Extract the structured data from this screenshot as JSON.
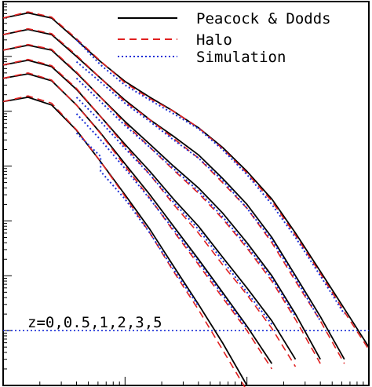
{
  "chart_data": {
    "type": "line",
    "title": "",
    "xlabel": "",
    "ylabel": "",
    "x_scale": "log",
    "y_scale": "log",
    "xlim": [
      0.01,
      10
    ],
    "ylim": [
      0.0001,
      1000
    ],
    "annotation": "z=0,0.5,1,2,3,5",
    "legend": {
      "placement": "top-right",
      "entries": [
        {
          "label": "Peacock & Dodds",
          "color": "#000000",
          "dash": "solid"
        },
        {
          "label": "Halo",
          "color": "#e02020",
          "dash": "dashed"
        },
        {
          "label": "Simulation",
          "color": "#1a2ed6",
          "dash": "dotted"
        }
      ]
    },
    "series": [
      {
        "redshift": "0",
        "pd": [
          [
            0.01,
            500
          ],
          [
            0.016,
            620
          ],
          [
            0.025,
            500
          ],
          [
            0.04,
            200
          ],
          [
            0.063,
            80
          ],
          [
            0.1,
            35
          ],
          [
            0.16,
            18
          ],
          [
            0.25,
            10
          ],
          [
            0.4,
            5
          ],
          [
            0.63,
            2.2
          ],
          [
            1,
            0.8
          ],
          [
            1.6,
            0.25
          ],
          [
            2.5,
            0.06
          ],
          [
            4,
            0.012
          ],
          [
            6.3,
            0.0025
          ],
          [
            10,
            0.0005
          ]
        ],
        "halo": [
          [
            0.01,
            500
          ],
          [
            0.016,
            650
          ],
          [
            0.025,
            520
          ],
          [
            0.04,
            210
          ],
          [
            0.063,
            82
          ],
          [
            0.1,
            33
          ],
          [
            0.16,
            17
          ],
          [
            0.25,
            10
          ],
          [
            0.4,
            5
          ],
          [
            0.63,
            2.1
          ],
          [
            1,
            0.75
          ],
          [
            1.6,
            0.23
          ],
          [
            2.5,
            0.055
          ],
          [
            4,
            0.011
          ],
          [
            6.3,
            0.0022
          ],
          [
            10,
            0.00045
          ]
        ],
        "sim": [
          [
            0.04,
            200
          ],
          [
            0.063,
            70
          ],
          [
            0.1,
            30
          ],
          [
            0.16,
            16
          ],
          [
            0.25,
            9
          ],
          [
            0.4,
            4.8
          ],
          [
            0.63,
            2
          ],
          [
            1,
            0.7
          ],
          [
            1.6,
            0.2
          ],
          [
            2.5,
            0.05
          ],
          [
            4,
            0.01
          ],
          [
            6.3,
            0.002
          ]
        ]
      },
      {
        "redshift": "0.5",
        "pd": [
          [
            0.01,
            250
          ],
          [
            0.016,
            310
          ],
          [
            0.025,
            250
          ],
          [
            0.04,
            100
          ],
          [
            0.063,
            40
          ],
          [
            0.1,
            16
          ],
          [
            0.16,
            7
          ],
          [
            0.25,
            3.5
          ],
          [
            0.4,
            1.6
          ],
          [
            0.63,
            0.6
          ],
          [
            1,
            0.2
          ],
          [
            1.6,
            0.05
          ],
          [
            2.5,
            0.01
          ],
          [
            4,
            0.0018
          ],
          [
            6.3,
            0.0003
          ]
        ],
        "halo": [
          [
            0.01,
            250
          ],
          [
            0.016,
            320
          ],
          [
            0.025,
            260
          ],
          [
            0.04,
            105
          ],
          [
            0.063,
            40
          ],
          [
            0.1,
            15
          ],
          [
            0.16,
            7
          ],
          [
            0.25,
            3.2
          ],
          [
            0.4,
            1.4
          ],
          [
            0.63,
            0.5
          ],
          [
            1,
            0.17
          ],
          [
            1.6,
            0.04
          ],
          [
            2.5,
            0.008
          ],
          [
            4,
            0.0015
          ],
          [
            6.3,
            0.00025
          ]
        ],
        "sim": [
          [
            0.04,
            80
          ],
          [
            0.063,
            34
          ],
          [
            0.1,
            14
          ],
          [
            0.16,
            6.5
          ],
          [
            0.25,
            3
          ],
          [
            0.4,
            1.4
          ],
          [
            0.63,
            0.55
          ],
          [
            1,
            0.17
          ],
          [
            1.6,
            0.045
          ],
          [
            2.5,
            0.009
          ],
          [
            4,
            0.0015
          ]
        ]
      },
      {
        "redshift": "1",
        "pd": [
          [
            0.01,
            130
          ],
          [
            0.016,
            160
          ],
          [
            0.025,
            130
          ],
          [
            0.04,
            50
          ],
          [
            0.063,
            18
          ],
          [
            0.1,
            6.5
          ],
          [
            0.16,
            2.5
          ],
          [
            0.25,
            1
          ],
          [
            0.4,
            0.4
          ],
          [
            0.63,
            0.14
          ],
          [
            1,
            0.04
          ],
          [
            1.6,
            0.01
          ],
          [
            2.5,
            0.002
          ],
          [
            4,
            0.0003
          ]
        ],
        "halo": [
          [
            0.01,
            130
          ],
          [
            0.016,
            165
          ],
          [
            0.025,
            135
          ],
          [
            0.04,
            52
          ],
          [
            0.063,
            18
          ],
          [
            0.1,
            6
          ],
          [
            0.16,
            2.2
          ],
          [
            0.25,
            0.85
          ],
          [
            0.4,
            0.32
          ],
          [
            0.63,
            0.11
          ],
          [
            1,
            0.032
          ],
          [
            1.6,
            0.008
          ],
          [
            2.5,
            0.0016
          ],
          [
            4,
            0.00025
          ]
        ],
        "sim": [
          [
            0.04,
            40
          ],
          [
            0.063,
            15
          ],
          [
            0.1,
            5.5
          ],
          [
            0.16,
            2.2
          ],
          [
            0.25,
            0.9
          ],
          [
            0.4,
            0.35
          ],
          [
            0.63,
            0.12
          ],
          [
            1,
            0.035
          ],
          [
            1.6,
            0.009
          ],
          [
            2.5,
            0.0018
          ]
        ]
      },
      {
        "redshift": "2",
        "pd": [
          [
            0.01,
            70
          ],
          [
            0.016,
            85
          ],
          [
            0.025,
            65
          ],
          [
            0.04,
            25
          ],
          [
            0.063,
            8
          ],
          [
            0.1,
            2.5
          ],
          [
            0.16,
            0.8
          ],
          [
            0.25,
            0.25
          ],
          [
            0.4,
            0.08
          ],
          [
            0.63,
            0.022
          ],
          [
            1,
            0.006
          ],
          [
            1.6,
            0.0015
          ],
          [
            2.5,
            0.0003
          ]
        ],
        "halo": [
          [
            0.01,
            70
          ],
          [
            0.016,
            88
          ],
          [
            0.025,
            68
          ],
          [
            0.04,
            26
          ],
          [
            0.063,
            8
          ],
          [
            0.1,
            2.3
          ],
          [
            0.16,
            0.7
          ],
          [
            0.25,
            0.2
          ],
          [
            0.4,
            0.06
          ],
          [
            0.63,
            0.016
          ],
          [
            1,
            0.0045
          ],
          [
            1.6,
            0.0011
          ],
          [
            2.5,
            0.00022
          ]
        ],
        "sim": [
          [
            0.04,
            18
          ],
          [
            0.063,
            6.5
          ],
          [
            0.1,
            2.1
          ],
          [
            0.16,
            0.7
          ],
          [
            0.25,
            0.22
          ],
          [
            0.4,
            0.07
          ],
          [
            0.63,
            0.019
          ],
          [
            1,
            0.005
          ],
          [
            1.6,
            0.0013
          ]
        ]
      },
      {
        "redshift": "3",
        "pd": [
          [
            0.01,
            40
          ],
          [
            0.016,
            48
          ],
          [
            0.025,
            36
          ],
          [
            0.04,
            13
          ],
          [
            0.063,
            4
          ],
          [
            0.1,
            1.1
          ],
          [
            0.16,
            0.3
          ],
          [
            0.25,
            0.08
          ],
          [
            0.4,
            0.02
          ],
          [
            0.63,
            0.005
          ],
          [
            1,
            0.0012
          ],
          [
            1.6,
            0.00025
          ]
        ],
        "halo": [
          [
            0.01,
            40
          ],
          [
            0.016,
            50
          ],
          [
            0.025,
            37
          ],
          [
            0.04,
            13
          ],
          [
            0.063,
            3.9
          ],
          [
            0.1,
            1
          ],
          [
            0.16,
            0.26
          ],
          [
            0.25,
            0.065
          ],
          [
            0.4,
            0.016
          ],
          [
            0.63,
            0.004
          ],
          [
            1,
            0.001
          ],
          [
            1.6,
            0.0002
          ]
        ],
        "sim": [
          [
            0.04,
            9
          ],
          [
            0.063,
            3
          ],
          [
            0.1,
            0.9
          ],
          [
            0.16,
            0.25
          ],
          [
            0.25,
            0.07
          ],
          [
            0.4,
            0.018
          ],
          [
            0.63,
            0.0045
          ],
          [
            1,
            0.0011
          ]
        ]
      },
      {
        "redshift": "5",
        "pd": [
          [
            0.01,
            15
          ],
          [
            0.016,
            18
          ],
          [
            0.025,
            13
          ],
          [
            0.04,
            4.5
          ],
          [
            0.063,
            1.2
          ],
          [
            0.1,
            0.3
          ],
          [
            0.16,
            0.07
          ],
          [
            0.25,
            0.015
          ],
          [
            0.4,
            0.003
          ],
          [
            0.63,
            0.0006
          ],
          [
            1,
            0.0001
          ]
        ],
        "halo": [
          [
            0.01,
            15
          ],
          [
            0.016,
            19
          ],
          [
            0.025,
            14
          ],
          [
            0.04,
            4.6
          ],
          [
            0.063,
            1.2
          ],
          [
            0.1,
            0.28
          ],
          [
            0.16,
            0.06
          ],
          [
            0.25,
            0.012
          ],
          [
            0.4,
            0.0024
          ],
          [
            0.63,
            0.00045
          ],
          [
            1,
            8e-05
          ]
        ],
        "sim": [
          [
            0.04,
            4
          ],
          [
            0.063,
            1.5
          ],
          [
            0.063,
            0.8
          ],
          [
            0.1,
            0.25
          ],
          [
            0.16,
            0.06
          ],
          [
            0.25,
            0.013
          ],
          [
            0.4,
            0.0028
          ]
        ]
      }
    ],
    "reference_line": {
      "y": 0.001,
      "color": "#1a2ed6",
      "dash": "dotted"
    }
  }
}
